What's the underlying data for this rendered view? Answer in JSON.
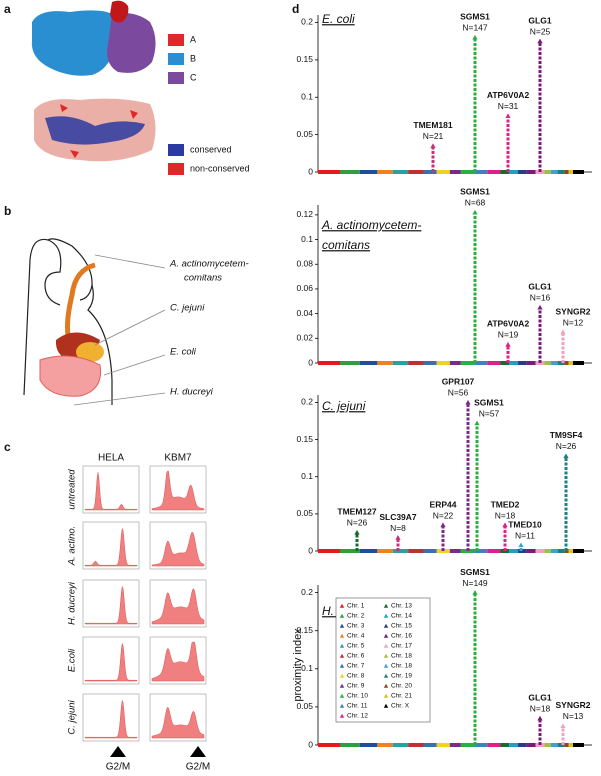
{
  "panel_letters": [
    "a",
    "b",
    "c",
    "d"
  ],
  "panel_a": {
    "legend": [
      "A",
      "B",
      "C"
    ],
    "colors": [
      "#e0282a",
      "#2a8fd0",
      "#7b4a9e"
    ],
    "conservation_legend": [
      "conserved",
      "non-conserved"
    ],
    "conservation_colors": [
      "#2a3aa0",
      "#e0282a"
    ]
  },
  "panel_b": {
    "labels": [
      [
        "A. actinomycetem-",
        "comitans"
      ],
      [
        "C. jejuni"
      ],
      [
        "E. coli"
      ],
      [
        "H. ducreyi"
      ]
    ]
  },
  "panel_c": {
    "columns": [
      "HELA",
      "KBM7"
    ],
    "rows": [
      "untreated",
      "A. actino.",
      "H. ducreyi",
      "E.coli",
      "C. jejuni"
    ],
    "markers": [
      "G2/M",
      "G2/M"
    ]
  },
  "chart_data": [
    {
      "type": "scatter",
      "title": [
        "E. coli"
      ],
      "ylim": [
        0,
        0.21
      ],
      "yticks": [
        0,
        0.05,
        0.1,
        0.15,
        0.2
      ],
      "genes": [
        "TMEM181",
        "SGMS1",
        "ATP6V0A2",
        "GLG1"
      ],
      "count_labels": [
        "N=21",
        "N=147",
        "N=31",
        "N=25"
      ],
      "values": [
        0.035,
        0.18,
        0.075,
        0.175
      ],
      "colors": [
        "#c8307a",
        "#2ab040",
        "#e0208a",
        "#7a1a7a"
      ]
    },
    {
      "type": "scatter",
      "title": [
        "A. actinomycetem-",
        "comitans"
      ],
      "ylim": [
        0,
        0.128
      ],
      "yticks": [
        0,
        0.02,
        0.04,
        0.06,
        0.08,
        0.1,
        0.12
      ],
      "genes": [
        "SGMS1",
        "ATP6V0A2",
        "GLG1",
        "SYNGR2"
      ],
      "count_labels": [
        "N=68",
        "N=19",
        "N=16",
        "N=12"
      ],
      "values": [
        0.122,
        0.015,
        0.045,
        0.025
      ],
      "colors": [
        "#2ab040",
        "#e0208a",
        "#7a1a7a",
        "#f0a0c0"
      ]
    },
    {
      "type": "scatter",
      "title": [
        "C. jejuni"
      ],
      "ylim": [
        0,
        0.21
      ],
      "yticks": [
        0,
        0.05,
        0.1,
        0.15,
        0.2
      ],
      "genes": [
        "TMEM127",
        "SLC39A7",
        "ERP44",
        "GPR107",
        "SGMS1",
        "TMED2",
        "TMED10",
        "TM9SF4"
      ],
      "count_labels": [
        "N=26",
        "N=8",
        "N=22",
        "N=56",
        "N=57",
        "N=18",
        "N=11",
        "N=26"
      ],
      "values": [
        0.025,
        0.018,
        0.035,
        0.2,
        0.172,
        0.035,
        0.008,
        0.128
      ],
      "colors": [
        "#1a6a30",
        "#c8307a",
        "#7a2a8a",
        "#7a2a8a",
        "#2ab040",
        "#e0208a",
        "#40a0d0",
        "#208080"
      ]
    },
    {
      "type": "scatter",
      "title": [
        "H. ducreyi"
      ],
      "ylabel": "proximity index",
      "ylim": [
        0,
        0.21
      ],
      "yticks": [
        0,
        0.05,
        0.1,
        0.15,
        0.2
      ],
      "genes": [
        "SGMS1",
        "GLG1",
        "SYNGR2"
      ],
      "count_labels": [
        "N=149",
        "N=18",
        "N=13"
      ],
      "values": [
        0.2,
        0.035,
        0.025
      ],
      "colors": [
        "#2ab040",
        "#7a1a7a",
        "#f0a0c0"
      ],
      "legend": {
        "names": [
          "Chr. 1",
          "Chr. 2",
          "Chr. 3",
          "Chr. 4",
          "Chr. 5",
          "Chr. 6",
          "Chr. 7",
          "Chr. 8",
          "Chr. 9",
          "Chr. 10",
          "Chr. 11",
          "Chr. 12",
          "Chr. 13",
          "Chr. 14",
          "Chr. 15",
          "Chr. 16",
          "Chr. 17",
          "Chr. 18",
          "Chr. 18",
          "Chr. 19",
          "Chr. 20",
          "Chr. 21",
          "Chr. X"
        ],
        "colors": [
          "#e41a1c",
          "#2e9e3e",
          "#1f4e9e",
          "#f08020",
          "#2aa0a0",
          "#c03030",
          "#3a6fb0",
          "#f0d020",
          "#7a2a8a",
          "#2ab040",
          "#4080c0",
          "#e0208a",
          "#1a6a30",
          "#20a0c0",
          "#2a3a8a",
          "#7a1a7a",
          "#f0a0c0",
          "#a0c040",
          "#40a0d0",
          "#208080",
          "#8a4a20",
          "#e0c020",
          "#000000"
        ]
      }
    }
  ]
}
